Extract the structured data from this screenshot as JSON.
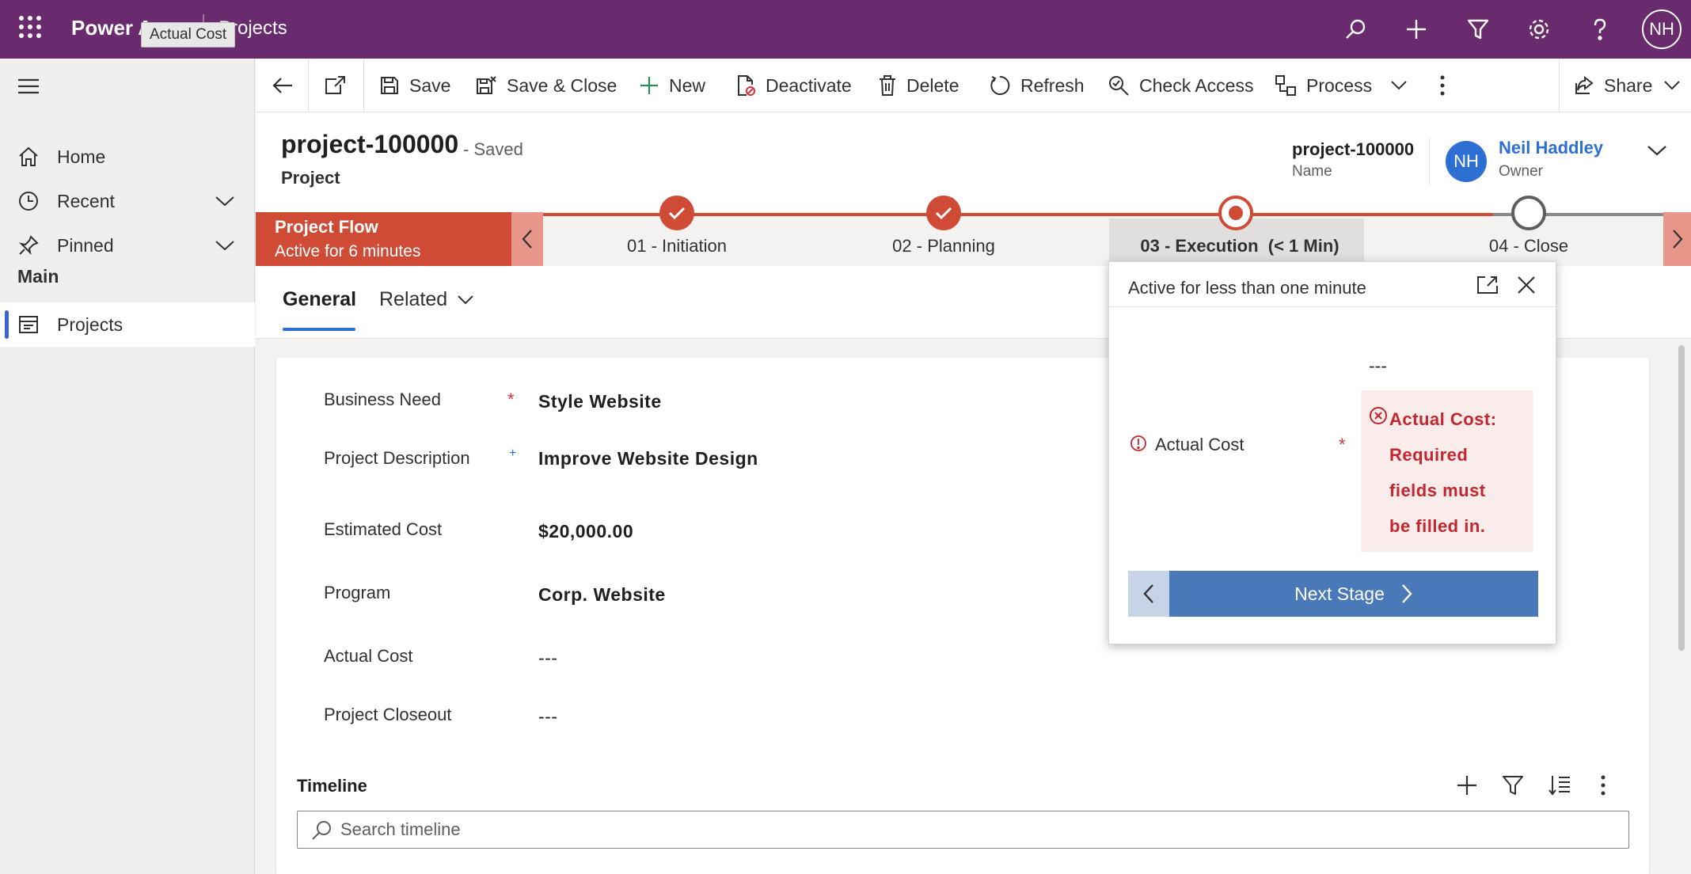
{
  "topbar": {
    "app_name": "Power Apps",
    "area_name": "Projects",
    "tooltip": "Actual Cost",
    "user_initials": "NH",
    "icons": [
      "waffle-icon",
      "search-icon",
      "add-icon",
      "filter-icon",
      "settings-icon",
      "help-icon"
    ]
  },
  "nav": {
    "items": [
      {
        "label": "Home",
        "icon": "home-icon"
      },
      {
        "label": "Recent",
        "icon": "clock-icon"
      },
      {
        "label": "Pinned",
        "icon": "pin-icon"
      }
    ],
    "section": "Main",
    "active_item": {
      "label": "Projects",
      "icon": "projects-icon"
    }
  },
  "commands": {
    "save": "Save",
    "save_close": "Save & Close",
    "new": "New",
    "deactivate": "Deactivate",
    "delete": "Delete",
    "refresh": "Refresh",
    "check_access": "Check Access",
    "process": "Process",
    "share": "Share"
  },
  "record": {
    "title": "project-100000",
    "status": "- Saved",
    "entity": "Project",
    "name_value": "project-100000",
    "name_label": "Name",
    "owner_name": "Neil Haddley",
    "owner_label": "Owner",
    "owner_initials": "NH"
  },
  "bpf": {
    "flow_name": "Project Flow",
    "flow_status": "Active for 6 minutes",
    "stages": [
      {
        "label": "01 - Initiation",
        "state": "completed"
      },
      {
        "label": "02 - Planning",
        "state": "completed"
      },
      {
        "label": "03 - Execution  (< 1 Min)",
        "state": "active"
      },
      {
        "label": "04 - Close",
        "state": "pending"
      }
    ],
    "completed_color": "#d04b35"
  },
  "tabs": {
    "general": "General",
    "related": "Related"
  },
  "form": {
    "fields": [
      {
        "label": "Business Need",
        "value": "Style Website",
        "req": "*"
      },
      {
        "label": "Project Description",
        "value": "Improve Website Design",
        "rec": "+"
      },
      {
        "label": "Estimated Cost",
        "value": "$20,000.00"
      },
      {
        "label": "Program",
        "value": "Corp. Website"
      },
      {
        "label": "Actual Cost",
        "value": "---"
      },
      {
        "label": "Project Closeout",
        "value": "---"
      }
    ],
    "timeline_label": "Timeline",
    "timeline_search_placeholder": "Search timeline"
  },
  "flyout": {
    "title": "Active for less than one minute",
    "field_value": "---",
    "field_label": "Actual Cost",
    "req": "*",
    "error_lines": [
      "Actual Cost:",
      "Required",
      "fields must",
      "be filled in."
    ],
    "next_stage": "Next Stage"
  }
}
